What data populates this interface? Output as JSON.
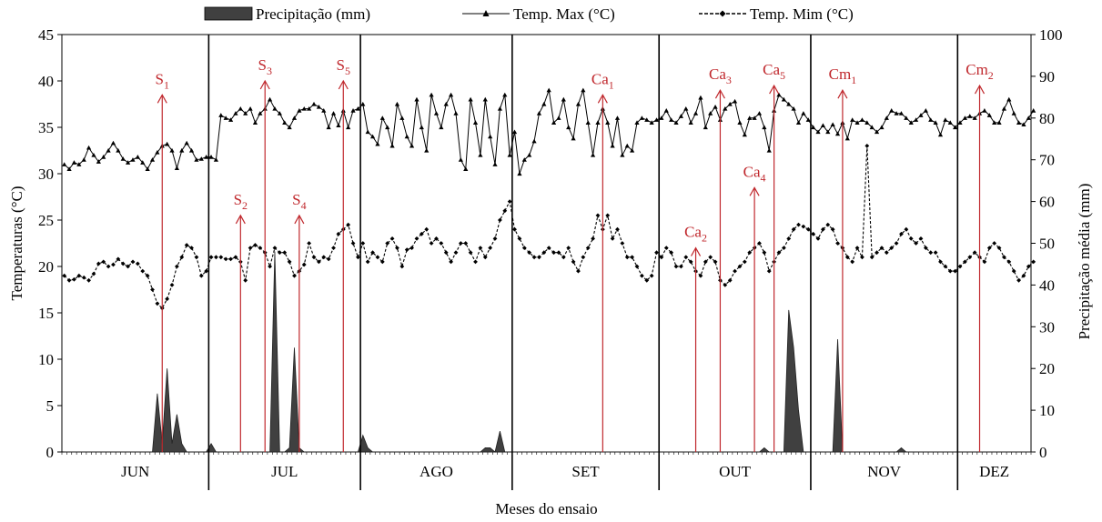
{
  "chart_data": {
    "type": "line",
    "xlabel": "Meses do ensaio",
    "ylabel_left": "Temperaturas (°C)",
    "ylabel_right": "Precipitação média (mm)",
    "ylim_left": [
      0,
      45
    ],
    "ylim_right": [
      0,
      100
    ],
    "yticks_left": [
      "0",
      "5",
      "10",
      "15",
      "20",
      "25",
      "30",
      "35",
      "40",
      "45"
    ],
    "yticks_right": [
      "0",
      "10",
      "20",
      "30",
      "40",
      "50",
      "60",
      "70",
      "80",
      "90",
      "100"
    ],
    "months": [
      {
        "label": "JUN",
        "start": 0,
        "end": 30
      },
      {
        "label": "JUL",
        "start": 30,
        "end": 61
      },
      {
        "label": "AGO",
        "start": 61,
        "end": 92
      },
      {
        "label": "SET",
        "start": 92,
        "end": 122
      },
      {
        "label": "OUT",
        "start": 122,
        "end": 153
      },
      {
        "label": "NOV",
        "start": 153,
        "end": 183
      },
      {
        "label": "DEZ",
        "start": 183,
        "end": 198
      }
    ],
    "series": [
      {
        "name": "Precipitação (mm)",
        "axis": "right",
        "style": "area",
        "color": "#404040",
        "values": [
          0,
          0,
          0,
          0,
          0,
          0,
          0,
          0,
          0,
          0,
          0,
          0,
          0,
          0,
          0,
          0,
          0,
          0,
          0,
          14,
          2,
          20,
          2,
          9,
          2,
          0,
          0,
          0,
          0,
          0,
          2,
          0,
          0,
          0,
          0,
          0,
          0,
          0,
          0,
          0,
          0,
          0,
          0,
          48,
          0,
          0,
          1,
          25,
          1,
          0,
          0,
          0,
          0,
          0,
          0,
          0,
          0,
          0,
          0,
          0,
          0,
          4,
          1,
          0,
          0,
          0,
          0,
          0,
          0,
          0,
          0,
          0,
          0,
          0,
          0,
          0,
          0,
          0,
          0,
          0,
          0,
          0,
          0,
          0,
          0,
          0,
          1,
          1,
          0,
          5,
          0,
          0,
          0,
          0,
          0,
          0,
          0,
          0,
          0,
          0,
          0,
          0,
          0,
          0,
          0,
          0,
          0,
          0,
          0,
          0,
          0,
          0,
          0,
          0,
          0,
          0,
          0,
          0,
          0,
          0,
          0,
          0,
          0,
          0,
          0,
          0,
          0,
          0,
          0,
          0,
          0,
          0,
          0,
          0,
          0,
          0,
          0,
          0,
          0,
          0,
          0,
          0,
          0,
          1,
          0,
          0,
          0,
          0,
          34,
          25,
          10,
          0,
          0,
          0,
          0,
          0,
          0,
          0,
          27,
          0,
          0,
          0,
          0,
          0,
          0,
          0,
          0,
          0,
          0,
          0,
          0,
          1,
          0,
          0,
          0,
          0,
          0,
          0,
          0,
          0,
          0,
          0,
          0,
          0,
          0,
          0,
          0,
          0,
          0,
          0,
          0,
          0,
          0,
          0,
          0,
          0,
          0,
          0,
          0
        ]
      },
      {
        "name": "Temp. Max (°C)",
        "axis": "left",
        "style": "line-triangle",
        "color": "#000000",
        "values": [
          31.0,
          30.5,
          31.2,
          31.0,
          31.5,
          32.8,
          32.0,
          31.3,
          31.8,
          32.5,
          33.3,
          32.5,
          31.6,
          31.2,
          31.5,
          31.8,
          31.2,
          30.5,
          31.5,
          32.3,
          33.0,
          33.2,
          32.5,
          30.6,
          32.5,
          33.3,
          32.5,
          31.5,
          31.6,
          31.8,
          31.8,
          31.5,
          36.3,
          36.0,
          35.8,
          36.5,
          37.0,
          36.5,
          37.0,
          35.5,
          36.5,
          37.0,
          38.0,
          37.0,
          36.5,
          35.5,
          35.0,
          36.0,
          36.8,
          37.0,
          37.0,
          37.5,
          37.2,
          36.8,
          35.0,
          36.5,
          35.2,
          36.8,
          35.0,
          36.8,
          37.0,
          37.5,
          34.5,
          34.0,
          33.2,
          36.0,
          35.0,
          33.0,
          37.5,
          36.0,
          34.0,
          33.0,
          38.0,
          35.0,
          32.5,
          38.5,
          36.5,
          35.0,
          37.5,
          38.5,
          36.5,
          31.5,
          30.5,
          38.0,
          35.5,
          32.0,
          38.0,
          34.0,
          31.0,
          37.0,
          38.5,
          32.0,
          34.5,
          30.0,
          31.5,
          32.0,
          33.5,
          36.5,
          37.5,
          39.0,
          35.5,
          36.0,
          38.0,
          35.0,
          33.8,
          37.5,
          39.0,
          35.5,
          32.0,
          35.5,
          37.0,
          35.5,
          33.0,
          36.0,
          32.0,
          33.0,
          32.5,
          35.5,
          36.0,
          35.8,
          35.5,
          35.8,
          36.0,
          36.8,
          35.8,
          35.5,
          36.2,
          37.0,
          35.5,
          36.5,
          38.2,
          35.0,
          36.5,
          37.2,
          35.8,
          37.0,
          37.5,
          37.8,
          35.5,
          34.2,
          36.0,
          36.0,
          36.5,
          35.0,
          32.5,
          36.8,
          38.5,
          38.0,
          37.5,
          37.0,
          35.5,
          36.5,
          35.8,
          35.0,
          34.5,
          35.2,
          34.5,
          35.3,
          34.3,
          35.5,
          33.8,
          35.8,
          35.5,
          35.8,
          35.5,
          35.0,
          34.5,
          35.0,
          36.0,
          36.8,
          36.5,
          36.5,
          36.0,
          35.5,
          35.8,
          36.3,
          36.8,
          35.8,
          35.5,
          34.2,
          35.8,
          35.5,
          35.0,
          35.5,
          36.0,
          36.2,
          36.0,
          36.5,
          36.8,
          36.3,
          35.5,
          35.5,
          37.0,
          38.0,
          36.5,
          35.5,
          35.3,
          36.0,
          36.8
        ]
      },
      {
        "name": "Temp. Mim (°C)",
        "axis": "left",
        "style": "line-dashed-diamond",
        "color": "#000000",
        "values": [
          19.0,
          18.5,
          18.6,
          19.0,
          18.8,
          18.5,
          19.2,
          20.3,
          20.5,
          20.0,
          20.2,
          20.8,
          20.3,
          20.0,
          20.5,
          20.3,
          19.5,
          19.0,
          17.5,
          16.0,
          15.5,
          16.5,
          18.0,
          20.0,
          21.0,
          22.3,
          22.0,
          21.0,
          19.0,
          19.5,
          21.0,
          21.0,
          21.0,
          20.8,
          20.8,
          21.0,
          20.5,
          18.5,
          22.0,
          22.3,
          22.0,
          21.5,
          20.0,
          22.0,
          21.5,
          21.5,
          20.5,
          19.0,
          19.5,
          20.2,
          22.5,
          21.0,
          20.5,
          21.0,
          20.8,
          22.0,
          23.5,
          24.0,
          24.5,
          22.5,
          21.0,
          22.5,
          20.5,
          21.5,
          21.0,
          20.5,
          22.5,
          23.0,
          22.0,
          20.0,
          21.8,
          22.0,
          23.0,
          23.5,
          24.0,
          22.5,
          23.0,
          22.5,
          21.5,
          20.5,
          21.5,
          22.5,
          22.5,
          21.5,
          20.5,
          22.0,
          21.0,
          22.0,
          23.0,
          25.0,
          26.0,
          27.0,
          24.0,
          23.0,
          22.0,
          21.5,
          21.0,
          21.0,
          21.5,
          22.0,
          21.5,
          21.5,
          21.0,
          22.0,
          20.5,
          19.5,
          21.0,
          22.0,
          23.0,
          25.5,
          24.0,
          25.5,
          23.0,
          24.0,
          22.5,
          21.0,
          21.0,
          20.0,
          19.0,
          18.5,
          19.0,
          21.5,
          21.0,
          22.0,
          21.5,
          20.0,
          20.0,
          21.0,
          20.5,
          19.5,
          19.0,
          20.5,
          21.0,
          20.5,
          18.5,
          18.0,
          18.5,
          19.5,
          20.0,
          20.5,
          21.5,
          22.0,
          22.5,
          21.5,
          19.5,
          20.5,
          21.5,
          22.0,
          23.0,
          24.0,
          24.5,
          24.3,
          24.0,
          23.5,
          23.0,
          24.0,
          24.5,
          24.0,
          22.5,
          22.0,
          21.0,
          20.5,
          22.0,
          21.0,
          33.0,
          21.0,
          21.5,
          22.0,
          21.5,
          22.0,
          22.5,
          23.5,
          24.0,
          23.0,
          22.5,
          23.0,
          22.0,
          21.5,
          21.5,
          20.5,
          20.0,
          19.5,
          19.5,
          20.0,
          20.5,
          21.0,
          21.5,
          21.0,
          20.5,
          22.0,
          22.5,
          22.0,
          21.0,
          20.5,
          19.5,
          18.5,
          19.0,
          20.0,
          20.5
        ]
      }
    ],
    "annotations": [
      {
        "label": "S",
        "sub": "1",
        "day": 20,
        "top": 38.5
      },
      {
        "label": "S",
        "sub": "2",
        "day": 36,
        "top": 25.5
      },
      {
        "label": "S",
        "sub": "3",
        "day": 41,
        "top": 40.0
      },
      {
        "label": "S",
        "sub": "4",
        "day": 48,
        "top": 25.5
      },
      {
        "label": "S",
        "sub": "5",
        "day": 57,
        "top": 40.0
      },
      {
        "label": "Ca",
        "sub": "1",
        "day": 110,
        "top": 38.5
      },
      {
        "label": "Ca",
        "sub": "2",
        "day": 129,
        "top": 22.0
      },
      {
        "label": "Ca",
        "sub": "3",
        "day": 134,
        "top": 39.0
      },
      {
        "label": "Ca",
        "sub": "4",
        "day": 141,
        "top": 28.5
      },
      {
        "label": "Ca",
        "sub": "5",
        "day": 145,
        "top": 39.5
      },
      {
        "label": "Cm",
        "sub": "1",
        "day": 159,
        "top": 39.0
      },
      {
        "label": "Cm",
        "sub": "2",
        "day": 187,
        "top": 39.5
      }
    ],
    "legend": {
      "placement": "top"
    },
    "grid": false
  }
}
